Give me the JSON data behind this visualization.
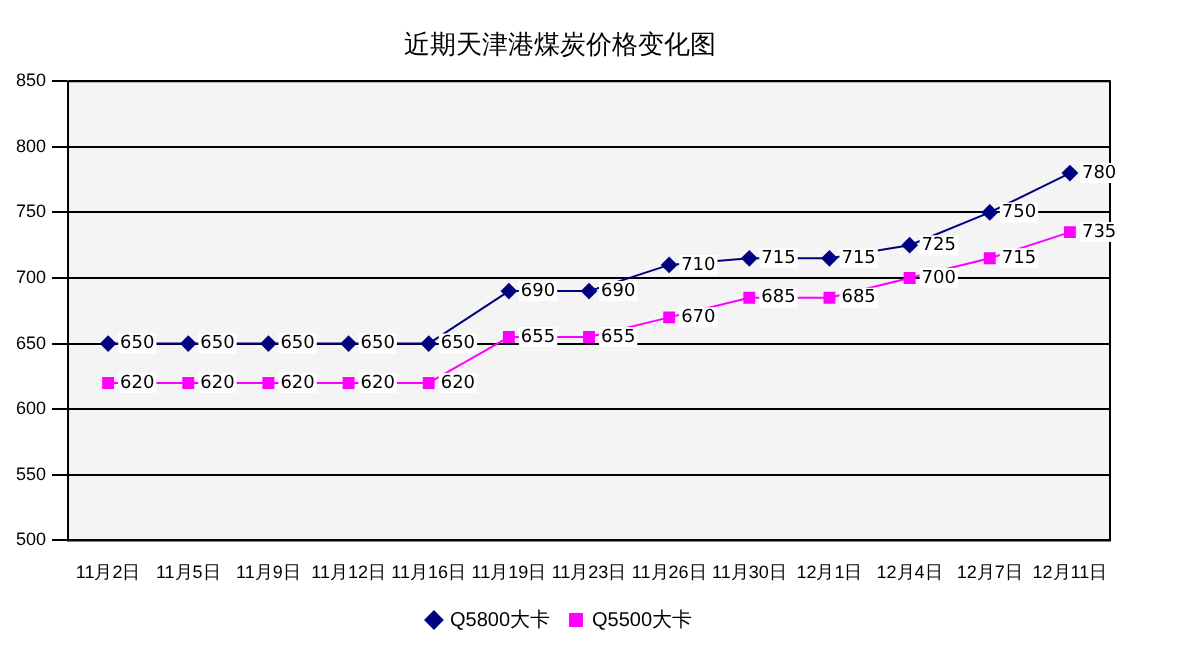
{
  "chart_data": {
    "type": "line",
    "title": "近期天津港煤炭价格变化图",
    "categories": [
      "11月2日",
      "11月5日",
      "11月9日",
      "11月12日",
      "11月16日",
      "11月19日",
      "11月23日",
      "11月26日",
      "11月30日",
      "12月1日",
      "12月4日",
      "12月7日",
      "12月11日"
    ],
    "series": [
      {
        "name": "Q5800大卡",
        "color": "#000080",
        "marker": "diamond",
        "values": [
          650,
          650,
          650,
          650,
          650,
          690,
          690,
          710,
          715,
          715,
          725,
          750,
          780
        ]
      },
      {
        "name": "Q5500大卡",
        "color": "#ff00ff",
        "marker": "square",
        "values": [
          620,
          620,
          620,
          620,
          620,
          655,
          655,
          670,
          685,
          685,
          700,
          715,
          735
        ]
      }
    ],
    "ylim": [
      500,
      850
    ],
    "yticks": [
      500,
      550,
      600,
      650,
      700,
      750,
      800,
      850
    ],
    "grid": "y",
    "legend": "bottom",
    "data_labels": true
  }
}
